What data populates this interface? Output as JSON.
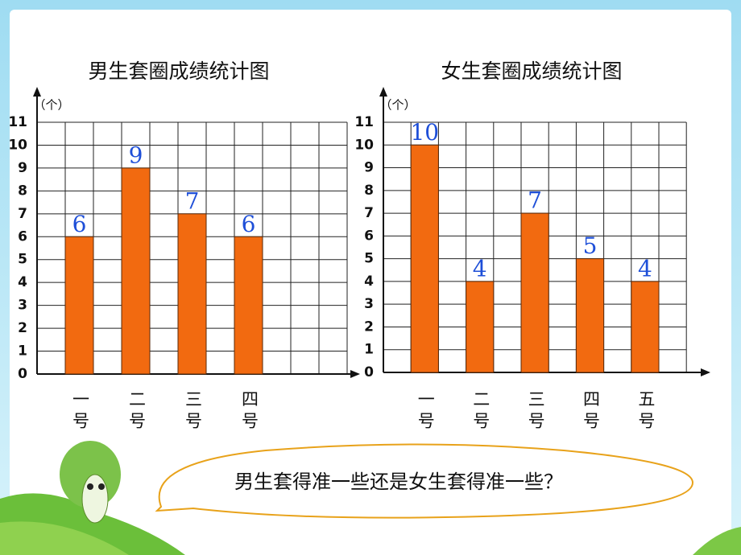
{
  "chart_data": [
    {
      "type": "bar",
      "title": "男生套圈成绩统计图",
      "y_label": "（个）",
      "categories": [
        "一号",
        "二号",
        "三号",
        "四号"
      ],
      "values": [
        6,
        9,
        7,
        6
      ],
      "color": "#f26a10",
      "ylim": [
        0,
        11
      ],
      "yticks": [
        0,
        1,
        2,
        3,
        4,
        5,
        6,
        7,
        8,
        9,
        10,
        11
      ],
      "grid": true
    },
    {
      "type": "bar",
      "title": "女生套圈成绩统计图",
      "y_label": "（个）",
      "categories": [
        "一号",
        "二号",
        "三号",
        "四号",
        "五号"
      ],
      "values": [
        10,
        4,
        7,
        5,
        4
      ],
      "color": "#f26a10",
      "ylim": [
        0,
        11
      ],
      "yticks": [
        0,
        1,
        2,
        3,
        4,
        5,
        6,
        7,
        8,
        9,
        10,
        11
      ],
      "grid": true
    }
  ],
  "question": "男生套得准一些还是女生套得准一些？"
}
